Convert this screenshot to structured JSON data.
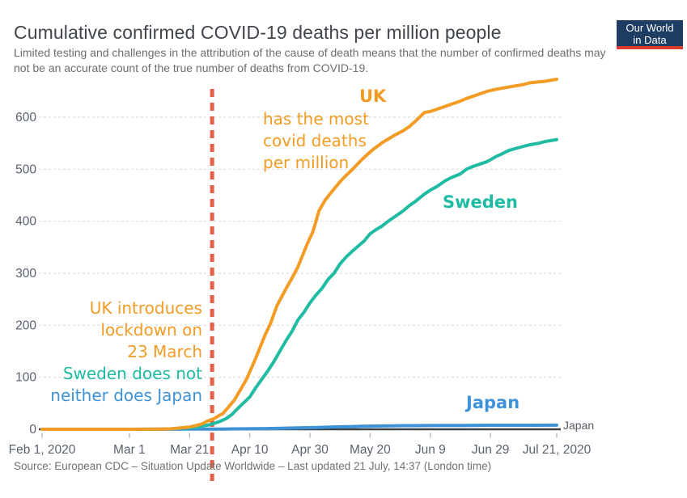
{
  "header": {
    "title": "Cumulative confirmed COVID-19 deaths per million people",
    "subtitle": "Limited testing and challenges in the attribution of the cause of death means that the number of confirmed deaths may not be an accurate count of the true number of deaths from COVID-19.",
    "logo": {
      "line1": "Our World",
      "line2": "in Data"
    }
  },
  "annotations": {
    "uk_label": "UK",
    "uk_note": "has the most\ncovid deaths\nper million",
    "sweden_label": "Sweden",
    "japan_label": "Japan",
    "lockdown_uk": "UK introduces\nlockdown on\n23 March",
    "lockdown_sweden": "Sweden does not",
    "lockdown_japan": "neither does Japan"
  },
  "footer": {
    "source": "Source: European CDC – Situation Update Worldwide – Last updated 21 July, 14:37 (London time)"
  },
  "colors": {
    "uk": "#F29C25",
    "sweden": "#1FBBA3",
    "japan": "#3E93D8",
    "event_line": "#E4604B",
    "title": "#41464c",
    "subtitle": "#6d6d6d",
    "axis": "#3d4245",
    "tick_label": "#5a6270",
    "gridline": "#dcdcdc",
    "logo_bg": "#1d3d63",
    "logo_bar": "#dc3a2d"
  },
  "chart_data": {
    "type": "line",
    "title": "Cumulative confirmed COVID-19 deaths per million people",
    "xlabel": "",
    "ylabel": "",
    "x_unit": "days since Feb 1, 2020",
    "x_range_days": [
      0,
      171
    ],
    "ylim": [
      0,
      680
    ],
    "yticks": [
      0,
      100,
      200,
      300,
      400,
      500,
      600
    ],
    "grid": "dashed horizontal",
    "legend_position": "inline labels",
    "xticks": [
      {
        "day": 0,
        "label": "Feb 1, 2020"
      },
      {
        "day": 29,
        "label": "Mar 1"
      },
      {
        "day": 49,
        "label": "Mar 21"
      },
      {
        "day": 69,
        "label": "Apr 10"
      },
      {
        "day": 89,
        "label": "Apr 30"
      },
      {
        "day": 109,
        "label": "May 20"
      },
      {
        "day": 129,
        "label": "Jun 9"
      },
      {
        "day": 149,
        "label": "Jun 29"
      },
      {
        "day": 171,
        "label": "Jul 21, 2020"
      }
    ],
    "event_line": {
      "x_day": 56.5,
      "date_label": "23 March",
      "color": "#E4604B"
    },
    "series": [
      {
        "name": "Japan",
        "color": "#3E93D8",
        "end_label": "Japan",
        "points": [
          [
            0,
            0
          ],
          [
            29,
            0.04
          ],
          [
            43,
            0.2
          ],
          [
            49,
            0.26
          ],
          [
            55,
            0.35
          ],
          [
            60,
            0.45
          ],
          [
            64,
            0.7
          ],
          [
            68,
            0.9
          ],
          [
            71,
            1.1
          ],
          [
            75,
            1.4
          ],
          [
            78,
            1.7
          ],
          [
            81,
            2.1
          ],
          [
            85,
            2.7
          ],
          [
            88,
            3.1
          ],
          [
            92,
            3.6
          ],
          [
            95,
            4.1
          ],
          [
            99,
            4.8
          ],
          [
            102,
            5.2
          ],
          [
            106,
            5.7
          ],
          [
            109,
            6.0
          ],
          [
            113,
            6.3
          ],
          [
            116,
            6.6
          ],
          [
            120,
            7.0
          ],
          [
            127,
            7.2
          ],
          [
            134,
            7.3
          ],
          [
            141,
            7.5
          ],
          [
            148,
            7.7
          ],
          [
            155,
            7.8
          ],
          [
            163,
            7.8
          ],
          [
            171,
            7.9
          ]
        ]
      },
      {
        "name": "Sweden",
        "color": "#1FBBA3",
        "points": [
          [
            0,
            0
          ],
          [
            29,
            0
          ],
          [
            40,
            0.5
          ],
          [
            43,
            1
          ],
          [
            46,
            2
          ],
          [
            49,
            3
          ],
          [
            51,
            4
          ],
          [
            53,
            6
          ],
          [
            55,
            8
          ],
          [
            57,
            11
          ],
          [
            59,
            15
          ],
          [
            61,
            20
          ],
          [
            63,
            28
          ],
          [
            65,
            40
          ],
          [
            67,
            51
          ],
          [
            69,
            62
          ],
          [
            71,
            80
          ],
          [
            73,
            96
          ],
          [
            75,
            112
          ],
          [
            77,
            130
          ],
          [
            79,
            150
          ],
          [
            81,
            170
          ],
          [
            83,
            188
          ],
          [
            85,
            210
          ],
          [
            87,
            225
          ],
          [
            89,
            243
          ],
          [
            91,
            258
          ],
          [
            93,
            271
          ],
          [
            95,
            288
          ],
          [
            97,
            300
          ],
          [
            99,
            318
          ],
          [
            101,
            331
          ],
          [
            103,
            342
          ],
          [
            105,
            352
          ],
          [
            107,
            362
          ],
          [
            109,
            376
          ],
          [
            111,
            384
          ],
          [
            113,
            391
          ],
          [
            115,
            400
          ],
          [
            117,
            408
          ],
          [
            120,
            420
          ],
          [
            122,
            430
          ],
          [
            124,
            438
          ],
          [
            127,
            452
          ],
          [
            129,
            460
          ],
          [
            131,
            466
          ],
          [
            134,
            478
          ],
          [
            136,
            484
          ],
          [
            139,
            491
          ],
          [
            141,
            500
          ],
          [
            143,
            505
          ],
          [
            146,
            511
          ],
          [
            148,
            515
          ],
          [
            151,
            525
          ],
          [
            153,
            530
          ],
          [
            155,
            536
          ],
          [
            158,
            541
          ],
          [
            160,
            544
          ],
          [
            162,
            547
          ],
          [
            165,
            550
          ],
          [
            167,
            553
          ],
          [
            169,
            555
          ],
          [
            171,
            557
          ]
        ]
      },
      {
        "name": "UK",
        "color": "#F29C25",
        "points": [
          [
            0,
            0
          ],
          [
            20,
            0
          ],
          [
            29,
            0
          ],
          [
            36,
            0.1
          ],
          [
            40,
            0.5
          ],
          [
            43,
            1
          ],
          [
            46,
            2.6
          ],
          [
            49,
            4.2
          ],
          [
            51,
            7
          ],
          [
            53,
            10
          ],
          [
            55,
            16
          ],
          [
            57,
            20
          ],
          [
            59,
            27
          ],
          [
            60,
            30
          ],
          [
            62,
            43
          ],
          [
            64,
            57
          ],
          [
            66,
            77
          ],
          [
            68,
            97
          ],
          [
            71,
            137
          ],
          [
            74,
            180
          ],
          [
            76,
            205
          ],
          [
            78,
            237
          ],
          [
            81,
            270
          ],
          [
            83,
            290
          ],
          [
            85,
            312
          ],
          [
            88,
            355
          ],
          [
            90,
            380
          ],
          [
            92,
            420
          ],
          [
            94,
            440
          ],
          [
            96,
            455
          ],
          [
            99,
            476
          ],
          [
            101,
            488
          ],
          [
            103,
            499
          ],
          [
            106,
            517
          ],
          [
            108,
            528
          ],
          [
            110,
            538
          ],
          [
            113,
            551
          ],
          [
            115,
            558
          ],
          [
            117,
            565
          ],
          [
            120,
            574
          ],
          [
            122,
            582
          ],
          [
            124,
            592
          ],
          [
            127,
            609
          ],
          [
            129,
            611
          ],
          [
            131,
            615
          ],
          [
            134,
            621
          ],
          [
            136,
            625
          ],
          [
            139,
            631
          ],
          [
            141,
            636
          ],
          [
            143,
            640
          ],
          [
            146,
            646
          ],
          [
            148,
            650
          ],
          [
            151,
            654
          ],
          [
            153,
            656
          ],
          [
            155,
            658
          ],
          [
            158,
            661
          ],
          [
            160,
            663
          ],
          [
            162,
            666
          ],
          [
            165,
            668
          ],
          [
            167,
            669
          ],
          [
            169,
            671
          ],
          [
            171,
            673
          ]
        ]
      }
    ]
  }
}
